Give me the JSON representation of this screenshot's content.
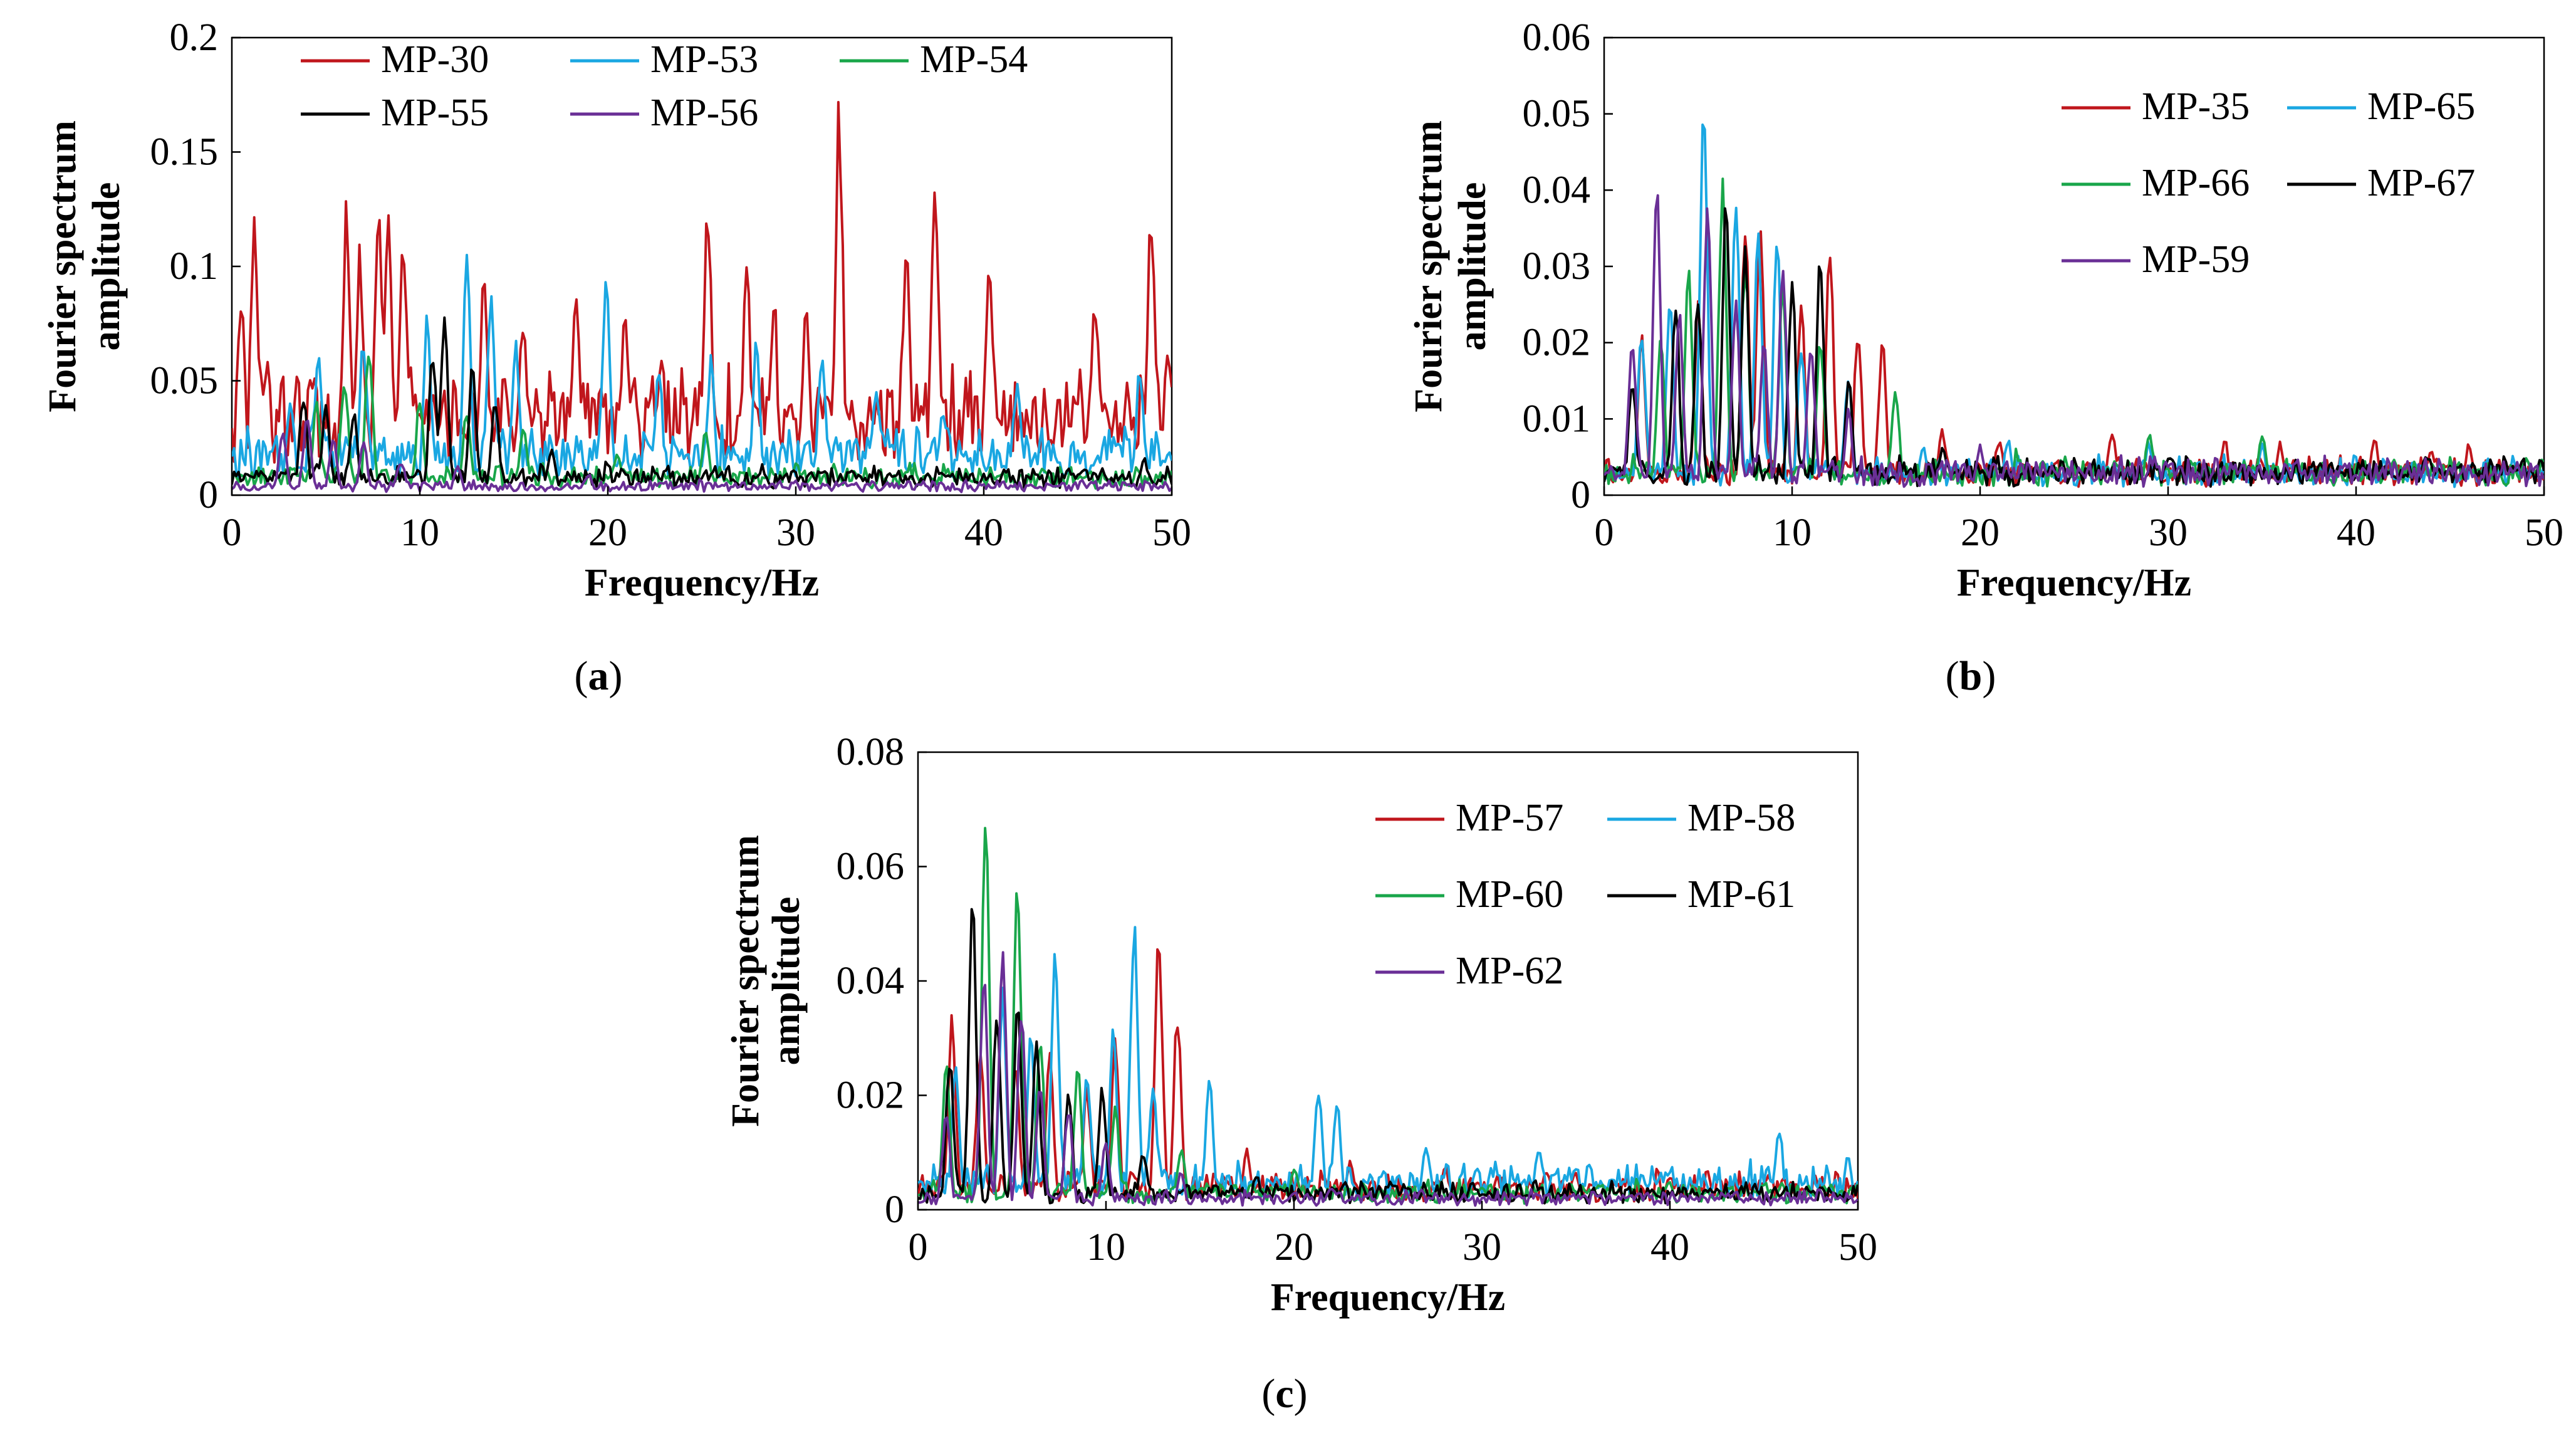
{
  "chart_data": [
    {
      "panel": "(a)",
      "type": "line",
      "xlabel": "Frequency/Hz",
      "ylabel": [
        "Fourier spectrum",
        "amplitude"
      ],
      "xlim": [
        0,
        50
      ],
      "ylim": [
        0,
        0.2
      ],
      "xticks": [
        "0",
        "10",
        "20",
        "30",
        "40",
        "50"
      ],
      "yticks": [
        "0",
        "0.05",
        "0.1",
        "0.15",
        "0.2"
      ],
      "grid": false,
      "legend": "top, inside, 3 columns",
      "series": [
        {
          "name": "MP-30",
          "color": "#c0161c",
          "peaks": [
            [
              0.5,
              0.088
            ],
            [
              1.2,
              0.113
            ],
            [
              6.1,
              0.119
            ],
            [
              6.8,
              0.097
            ],
            [
              7.8,
              0.121
            ],
            [
              8.3,
              0.118
            ],
            [
              9.1,
              0.108
            ],
            [
              13.4,
              0.087
            ],
            [
              15.5,
              0.07
            ],
            [
              18.3,
              0.088
            ],
            [
              20.9,
              0.078
            ],
            [
              25.3,
              0.121
            ],
            [
              27.4,
              0.09
            ],
            [
              28.8,
              0.074
            ],
            [
              30.5,
              0.067
            ],
            [
              32.3,
              0.162
            ],
            [
              35.9,
              0.1
            ],
            [
              37.4,
              0.13
            ],
            [
              40.3,
              0.094
            ],
            [
              45.9,
              0.079
            ],
            [
              48.9,
              0.122
            ],
            [
              49.8,
              0.061
            ]
          ],
          "base": 0.035,
          "min": 0.0
        },
        {
          "name": "MP-53",
          "color": "#1aa7e2",
          "peaks": [
            [
              3.1,
              0.035
            ],
            [
              4.6,
              0.062
            ],
            [
              7.0,
              0.066
            ],
            [
              10.4,
              0.075
            ],
            [
              12.5,
              0.1
            ],
            [
              13.8,
              0.085
            ],
            [
              15.1,
              0.06
            ],
            [
              19.9,
              0.092
            ],
            [
              22.7,
              0.05
            ],
            [
              25.5,
              0.055
            ],
            [
              27.9,
              0.06
            ],
            [
              31.4,
              0.058
            ],
            [
              34.3,
              0.045
            ],
            [
              37.8,
              0.035
            ],
            [
              41.8,
              0.048
            ],
            [
              48.3,
              0.05
            ]
          ],
          "base": 0.018,
          "min": 0.0
        },
        {
          "name": "MP-54",
          "color": "#19a64a",
          "peaks": [
            [
              4.5,
              0.04
            ],
            [
              6.0,
              0.05
            ],
            [
              7.3,
              0.065
            ],
            [
              10.0,
              0.04
            ],
            [
              12.5,
              0.035
            ],
            [
              15.5,
              0.03
            ],
            [
              20.5,
              0.018
            ],
            [
              25.2,
              0.027
            ],
            [
              30.0,
              0.012
            ],
            [
              36.0,
              0.008
            ]
          ],
          "base": 0.008,
          "min": 0.0
        },
        {
          "name": "MP-55",
          "color": "#000000",
          "peaks": [
            [
              3.8,
              0.043
            ],
            [
              5.0,
              0.04
            ],
            [
              6.5,
              0.035
            ],
            [
              10.7,
              0.062
            ],
            [
              11.3,
              0.077
            ],
            [
              12.8,
              0.055
            ],
            [
              14.0,
              0.04
            ],
            [
              17.0,
              0.02
            ],
            [
              20.0,
              0.012
            ],
            [
              26.0,
              0.008
            ],
            [
              33.0,
              0.01
            ],
            [
              48.5,
              0.014
            ]
          ],
          "base": 0.008,
          "min": 0.0
        },
        {
          "name": "MP-56",
          "color": "#6a2f96",
          "peaks": [
            [
              2.7,
              0.027
            ],
            [
              4.0,
              0.035
            ],
            [
              5.4,
              0.025
            ],
            [
              7.0,
              0.022
            ],
            [
              9.0,
              0.015
            ],
            [
              12.0,
              0.012
            ],
            [
              19.0,
              0.008
            ],
            [
              30.0,
              0.005
            ]
          ],
          "base": 0.004,
          "min": 0.0
        }
      ]
    },
    {
      "panel": "(b)",
      "type": "line",
      "xlabel": "Frequency/Hz",
      "ylabel": [
        "Fourier spectrum",
        "amplitude"
      ],
      "xlim": [
        0,
        50
      ],
      "ylim": [
        0,
        0.06
      ],
      "xticks": [
        "0",
        "10",
        "20",
        "30",
        "40",
        "50"
      ],
      "yticks": [
        "0",
        "0.01",
        "0.02",
        "0.03",
        "0.04",
        "0.05",
        "0.06"
      ],
      "grid": false,
      "legend": "top-right, inside, 2 columns",
      "series": [
        {
          "name": "MP-35",
          "color": "#c0161c",
          "peaks": [
            [
              2.0,
              0.02
            ],
            [
              5.0,
              0.025
            ],
            [
              7.5,
              0.035
            ],
            [
              8.3,
              0.038
            ],
            [
              10.5,
              0.025
            ],
            [
              12.0,
              0.031
            ],
            [
              13.5,
              0.022
            ],
            [
              14.8,
              0.02
            ],
            [
              18.0,
              0.008
            ],
            [
              21.0,
              0.007
            ],
            [
              27.0,
              0.008
            ],
            [
              33.0,
              0.007
            ],
            [
              36.0,
              0.006
            ],
            [
              41.0,
              0.007
            ],
            [
              44.0,
              0.006
            ],
            [
              46.0,
              0.006
            ]
          ],
          "base": 0.003,
          "min": 0.0
        },
        {
          "name": "MP-65",
          "color": "#1aa7e2",
          "peaks": [
            [
              2.0,
              0.022
            ],
            [
              3.5,
              0.025
            ],
            [
              5.3,
              0.052
            ],
            [
              7.0,
              0.04
            ],
            [
              8.2,
              0.035
            ],
            [
              9.2,
              0.033
            ],
            [
              10.5,
              0.02
            ],
            [
              13.0,
              0.015
            ],
            [
              17.0,
              0.006
            ],
            [
              21.5,
              0.007
            ],
            [
              29.0,
              0.006
            ],
            [
              35.0,
              0.006
            ],
            [
              40.0,
              0.004
            ],
            [
              47.0,
              0.005
            ]
          ],
          "base": 0.003,
          "min": 0.0
        },
        {
          "name": "MP-66",
          "color": "#19a64a",
          "peaks": [
            [
              3.0,
              0.02
            ],
            [
              4.5,
              0.03
            ],
            [
              6.3,
              0.042
            ],
            [
              7.5,
              0.031
            ],
            [
              9.5,
              0.028
            ],
            [
              11.5,
              0.02
            ],
            [
              15.5,
              0.014
            ],
            [
              22.0,
              0.005
            ],
            [
              29.0,
              0.008
            ],
            [
              35.0,
              0.008
            ],
            [
              42.0,
              0.005
            ]
          ],
          "base": 0.003,
          "min": 0.0
        },
        {
          "name": "MP-67",
          "color": "#000000",
          "peaks": [
            [
              1.5,
              0.015
            ],
            [
              3.8,
              0.025
            ],
            [
              5.0,
              0.026
            ],
            [
              6.5,
              0.038
            ],
            [
              7.5,
              0.032
            ],
            [
              10.0,
              0.028
            ],
            [
              11.5,
              0.032
            ],
            [
              13.0,
              0.015
            ],
            [
              18.0,
              0.006
            ],
            [
              25.0,
              0.004
            ],
            [
              30.0,
              0.004
            ]
          ],
          "base": 0.003,
          "min": 0.0
        },
        {
          "name": "MP-59",
          "color": "#6a2f96",
          "peaks": [
            [
              1.5,
              0.02
            ],
            [
              2.8,
              0.04
            ],
            [
              4.0,
              0.024
            ],
            [
              5.5,
              0.04
            ],
            [
              7.0,
              0.025
            ],
            [
              8.5,
              0.02
            ],
            [
              9.5,
              0.031
            ],
            [
              11.0,
              0.02
            ],
            [
              13.0,
              0.01
            ],
            [
              20.0,
              0.006
            ],
            [
              30.0,
              0.004
            ]
          ],
          "base": 0.003,
          "min": 0.0
        }
      ]
    },
    {
      "panel": "(c)",
      "type": "line",
      "xlabel": "Frequency/Hz",
      "ylabel": [
        "Fourier spectrum",
        "amplitude"
      ],
      "xlim": [
        0,
        50
      ],
      "ylim": [
        0,
        0.08
      ],
      "xticks": [
        "0",
        "10",
        "20",
        "30",
        "40",
        "50"
      ],
      "yticks": [
        "0",
        "0.02",
        "0.04",
        "0.06",
        "0.08"
      ],
      "grid": false,
      "legend": "top-right, inside, 2 columns",
      "series": [
        {
          "name": "MP-57",
          "color": "#c0161c",
          "peaks": [
            [
              1.8,
              0.033
            ],
            [
              3.3,
              0.028
            ],
            [
              5.2,
              0.025
            ],
            [
              7.0,
              0.027
            ],
            [
              9.0,
              0.021
            ],
            [
              10.5,
              0.029
            ],
            [
              12.8,
              0.049
            ],
            [
              13.8,
              0.033
            ],
            [
              17.5,
              0.01
            ],
            [
              23.0,
              0.008
            ],
            [
              28.0,
              0.007
            ],
            [
              35.0,
              0.005
            ],
            [
              42.0,
              0.005
            ]
          ],
          "base": 0.004,
          "min": 0.0
        },
        {
          "name": "MP-58",
          "color": "#1aa7e2",
          "peaks": [
            [
              2.0,
              0.024
            ],
            [
              4.5,
              0.038
            ],
            [
              6.0,
              0.03
            ],
            [
              7.3,
              0.046
            ],
            [
              9.0,
              0.024
            ],
            [
              10.4,
              0.03
            ],
            [
              11.5,
              0.05
            ],
            [
              12.5,
              0.022
            ],
            [
              15.5,
              0.022
            ],
            [
              21.3,
              0.021
            ],
            [
              22.3,
              0.019
            ],
            [
              27.0,
              0.01
            ],
            [
              33.0,
              0.01
            ],
            [
              40.0,
              0.007
            ],
            [
              45.8,
              0.013
            ],
            [
              49.5,
              0.008
            ]
          ],
          "base": 0.005,
          "min": 0.0
        },
        {
          "name": "MP-60",
          "color": "#19a64a",
          "peaks": [
            [
              1.5,
              0.025
            ],
            [
              3.6,
              0.067
            ],
            [
              5.3,
              0.058
            ],
            [
              6.5,
              0.03
            ],
            [
              8.5,
              0.025
            ],
            [
              10.5,
              0.018
            ],
            [
              14.0,
              0.01
            ],
            [
              20.0,
              0.007
            ],
            [
              30.0,
              0.004
            ],
            [
              40.0,
              0.004
            ],
            [
              48.0,
              0.004
            ]
          ],
          "base": 0.003,
          "min": 0.0
        },
        {
          "name": "MP-61",
          "color": "#000000",
          "peaks": [
            [
              1.7,
              0.026
            ],
            [
              2.9,
              0.054
            ],
            [
              4.2,
              0.035
            ],
            [
              5.3,
              0.037
            ],
            [
              6.3,
              0.03
            ],
            [
              8.0,
              0.02
            ],
            [
              9.8,
              0.021
            ],
            [
              12.0,
              0.01
            ],
            [
              18.0,
              0.006
            ],
            [
              25.0,
              0.004
            ]
          ],
          "base": 0.003,
          "min": 0.0
        },
        {
          "name": "MP-62",
          "color": "#6a2f96",
          "peaks": [
            [
              1.5,
              0.018
            ],
            [
              3.5,
              0.041
            ],
            [
              4.5,
              0.045
            ],
            [
              5.5,
              0.035
            ],
            [
              6.5,
              0.022
            ],
            [
              8.0,
              0.018
            ],
            [
              10.0,
              0.012
            ],
            [
              14.0,
              0.006
            ],
            [
              22.0,
              0.004
            ]
          ],
          "base": 0.002,
          "min": 0.0
        }
      ]
    }
  ]
}
